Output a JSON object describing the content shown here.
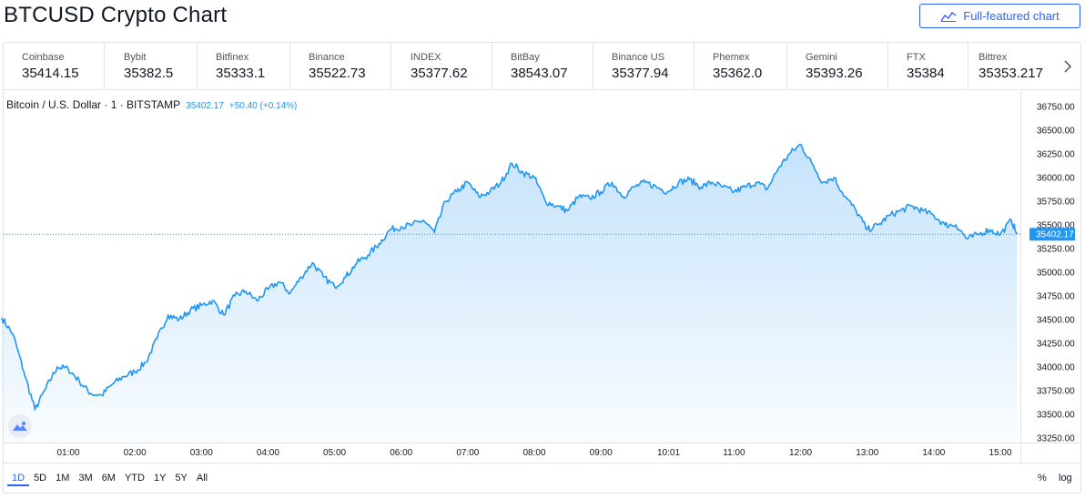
{
  "header": {
    "title": "BTCUSD Crypto Chart",
    "full_button_label": "Full-featured chart"
  },
  "tickers": [
    {
      "name": "Coinbase",
      "price": "35414.15"
    },
    {
      "name": "Bybit",
      "price": "35382.5"
    },
    {
      "name": "Bitfinex",
      "price": "35333.1"
    },
    {
      "name": "Binance",
      "price": "35522.73"
    },
    {
      "name": "INDEX",
      "price": "35377.62"
    },
    {
      "name": "BitBay",
      "price": "38543.07"
    },
    {
      "name": "Binance US",
      "price": "35377.94"
    },
    {
      "name": "Phemex",
      "price": "35362.0"
    },
    {
      "name": "Gemini",
      "price": "35393.26"
    },
    {
      "name": "FTX",
      "price": "35384"
    },
    {
      "name": "Bittrex",
      "price": "35353.217"
    }
  ],
  "legend": {
    "symbol": "Bitcoin / U.S. Dollar · 1 · BITSTAMP",
    "last": "35402.17",
    "change": "+50.40 (+0.14%)"
  },
  "chart_data": {
    "type": "area",
    "x": [
      "00:00",
      "00:10",
      "00:20",
      "00:30",
      "00:40",
      "00:50",
      "01:00",
      "01:10",
      "01:20",
      "01:30",
      "01:40",
      "01:50",
      "02:00",
      "02:10",
      "02:20",
      "02:30",
      "02:40",
      "02:50",
      "03:00",
      "03:10",
      "03:20",
      "03:30",
      "03:40",
      "03:50",
      "04:00",
      "04:10",
      "04:20",
      "04:30",
      "04:40",
      "04:50",
      "05:00",
      "05:10",
      "05:20",
      "05:30",
      "05:40",
      "05:50",
      "06:00",
      "06:10",
      "06:20",
      "06:30",
      "06:40",
      "06:50",
      "07:00",
      "07:10",
      "07:20",
      "07:30",
      "07:40",
      "07:50",
      "08:00",
      "08:10",
      "08:20",
      "08:30",
      "08:40",
      "08:50",
      "09:00",
      "09:10",
      "09:20",
      "09:30",
      "09:40",
      "09:50",
      "10:00",
      "10:10",
      "10:20",
      "10:30",
      "10:40",
      "10:50",
      "11:00",
      "11:10",
      "11:20",
      "11:30",
      "11:40",
      "11:50",
      "12:00",
      "12:10",
      "12:20",
      "12:30",
      "12:40",
      "12:50",
      "13:00",
      "13:10",
      "13:20",
      "13:30",
      "13:40",
      "13:50",
      "14:00",
      "14:10",
      "14:20",
      "14:30",
      "14:40",
      "14:50",
      "15:00",
      "15:10",
      "15:15"
    ],
    "values": [
      34520,
      34350,
      33950,
      33550,
      33780,
      34000,
      33980,
      33850,
      33720,
      33700,
      33820,
      33900,
      33950,
      34050,
      34300,
      34550,
      34500,
      34600,
      34650,
      34700,
      34550,
      34750,
      34800,
      34700,
      34820,
      34900,
      34780,
      34950,
      35100,
      34950,
      34850,
      34950,
      35100,
      35180,
      35300,
      35450,
      35480,
      35500,
      35550,
      35420,
      35750,
      35850,
      35950,
      35800,
      35850,
      35950,
      36150,
      36050,
      36000,
      35750,
      35700,
      35650,
      35800,
      35780,
      35850,
      35950,
      35800,
      35900,
      35950,
      35900,
      35850,
      35950,
      35980,
      35900,
      35950,
      35900,
      35850,
      35900,
      35950,
      35880,
      36100,
      36250,
      36350,
      36150,
      35950,
      36000,
      35800,
      35650,
      35450,
      35500,
      35600,
      35650,
      35700,
      35650,
      35600,
      35500,
      35500,
      35350,
      35400,
      35450,
      35400,
      35550,
      35402
    ],
    "ylim": [
      33200,
      36900
    ],
    "y_ticks": [
      "36750.00",
      "36500.00",
      "36250.00",
      "36000.00",
      "35750.00",
      "35500.00",
      "35250.00",
      "35000.00",
      "34750.00",
      "34500.00",
      "34250.00",
      "34000.00",
      "33750.00",
      "33500.00",
      "33250.00"
    ],
    "x_ticks": [
      "01:00",
      "02:00",
      "03:00",
      "04:00",
      "05:00",
      "06:00",
      "07:00",
      "08:00",
      "09:00",
      "10:01",
      "11:00",
      "12:00",
      "13:00",
      "14:00",
      "15:00"
    ],
    "last_price_label": "35402.17",
    "line_color": "#2196f3",
    "fill_color": "#bbdefb",
    "grid": false
  },
  "range_buttons": [
    "1D",
    "5D",
    "1M",
    "3M",
    "6M",
    "YTD",
    "1Y",
    "5Y",
    "All"
  ],
  "active_range": "1D",
  "scale_options": {
    "percent": "%",
    "log": "log"
  }
}
